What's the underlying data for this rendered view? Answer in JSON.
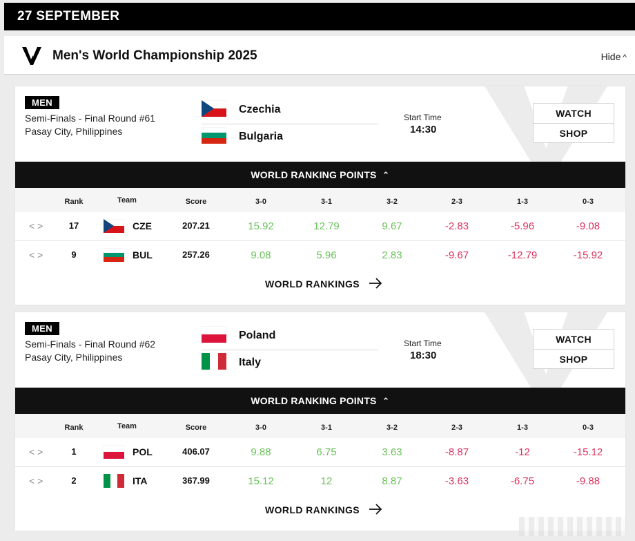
{
  "date_header": "27 SEPTEMBER",
  "competition": {
    "title": "Men's World Championship 2025",
    "hide_label": "Hide"
  },
  "colors": {
    "positive": "#6ac15a",
    "negative": "#d9335f",
    "dark": "#111111"
  },
  "table_headers": [
    "Rank",
    "Team",
    "Score",
    "3-0",
    "3-1",
    "3-2",
    "2-3",
    "1-3",
    "0-3"
  ],
  "matches": [
    {
      "gender": "MEN",
      "round": "Semi-Finals - Final Round #61",
      "venue": "Pasay City, Philippines",
      "team1": {
        "name": "Czechia",
        "flag": "czechia-flag"
      },
      "team2": {
        "name": "Bulgaria",
        "flag": "bulgaria-flag"
      },
      "start_label": "Start Time",
      "start_time": "14:30",
      "watch_label": "WATCH",
      "shop_label": "SHOP",
      "ranking_bar_label": "WORLD RANKING POINTS",
      "world_rankings_link": "WORLD RANKINGS",
      "rows": [
        {
          "rank": "17",
          "code": "CZE",
          "score": "207.21",
          "r30": "15.92",
          "r31": "12.79",
          "r32": "9.67",
          "r23": "-2.83",
          "r13": "-5.96",
          "r03": "-9.08"
        },
        {
          "rank": "9",
          "code": "BUL",
          "score": "257.26",
          "r30": "9.08",
          "r31": "5.96",
          "r32": "2.83",
          "r23": "-9.67",
          "r13": "-12.79",
          "r03": "-15.92"
        }
      ]
    },
    {
      "gender": "MEN",
      "round": "Semi-Finals - Final Round #62",
      "venue": "Pasay City, Philippines",
      "team1": {
        "name": "Poland",
        "flag": "poland-flag"
      },
      "team2": {
        "name": "Italy",
        "flag": "italy-flag"
      },
      "start_label": "Start Time",
      "start_time": "18:30",
      "watch_label": "WATCH",
      "shop_label": "SHOP",
      "ranking_bar_label": "WORLD RANKING POINTS",
      "world_rankings_link": "WORLD RANKINGS",
      "rows": [
        {
          "rank": "1",
          "code": "POL",
          "score": "406.07",
          "r30": "9.88",
          "r31": "6.75",
          "r32": "3.63",
          "r23": "-8.87",
          "r13": "-12",
          "r03": "-15.12"
        },
        {
          "rank": "2",
          "code": "ITA",
          "score": "367.99",
          "r30": "15.12",
          "r31": "12",
          "r32": "8.87",
          "r23": "-3.63",
          "r13": "-6.75",
          "r03": "-9.88"
        }
      ]
    }
  ]
}
